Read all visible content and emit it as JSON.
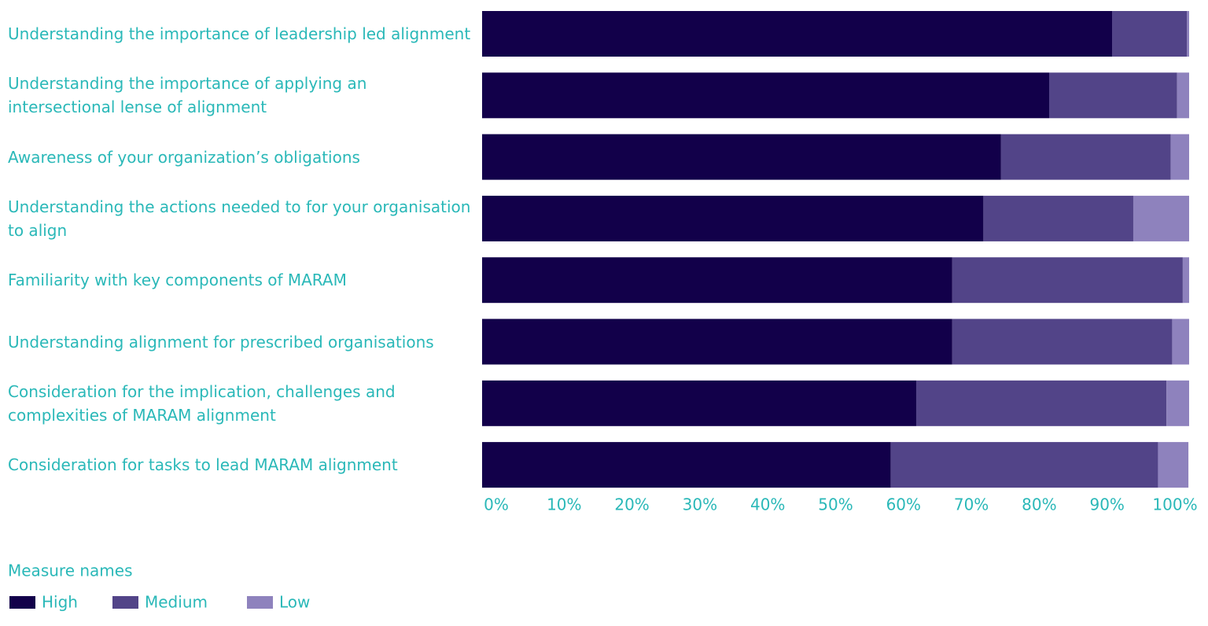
{
  "chart_data": {
    "type": "stacked-bar-horizontal",
    "categories": [
      "Understanding the importance of leadership led alignment",
      "Understanding the importance of applying an intersectional lense of alignment",
      "Awareness of your organization’s obligations",
      "Understanding the actions needed to for your organisation to align",
      "Familiarity with key components of MARAM",
      "Understanding alignment for prescribed organisations",
      "Consideration for the implication, challenges and complexities of MARAM alignment",
      "Consideration for tasks to lead MARAM alignment"
    ],
    "series": [
      {
        "name": "High",
        "color": "#12004a",
        "values": [
          89.1,
          80.2,
          73.4,
          70.9,
          66.5,
          66.5,
          61.4,
          57.8
        ]
      },
      {
        "name": "Medium",
        "color": "#524488",
        "values": [
          10.6,
          18.1,
          24.0,
          21.2,
          32.6,
          31.1,
          35.4,
          37.8
        ]
      },
      {
        "name": "Low",
        "color": "#8e82bd",
        "values": [
          0.3,
          1.7,
          2.6,
          7.9,
          0.9,
          2.4,
          3.2,
          4.3
        ]
      }
    ],
    "xlim": [
      0,
      100
    ],
    "xticks": [
      {
        "value": 0,
        "label": "0%"
      },
      {
        "value": 10,
        "label": "10%"
      },
      {
        "value": 20,
        "label": "20%"
      },
      {
        "value": 30,
        "label": "30%"
      },
      {
        "value": 40,
        "label": "40%"
      },
      {
        "value": 50,
        "label": "50%"
      },
      {
        "value": 60,
        "label": "60%"
      },
      {
        "value": 70,
        "label": "70%"
      },
      {
        "value": 80,
        "label": "80%"
      },
      {
        "value": 90,
        "label": "90%"
      },
      {
        "value": 100,
        "label": "100%"
      }
    ],
    "legend_title": "Measure names"
  }
}
